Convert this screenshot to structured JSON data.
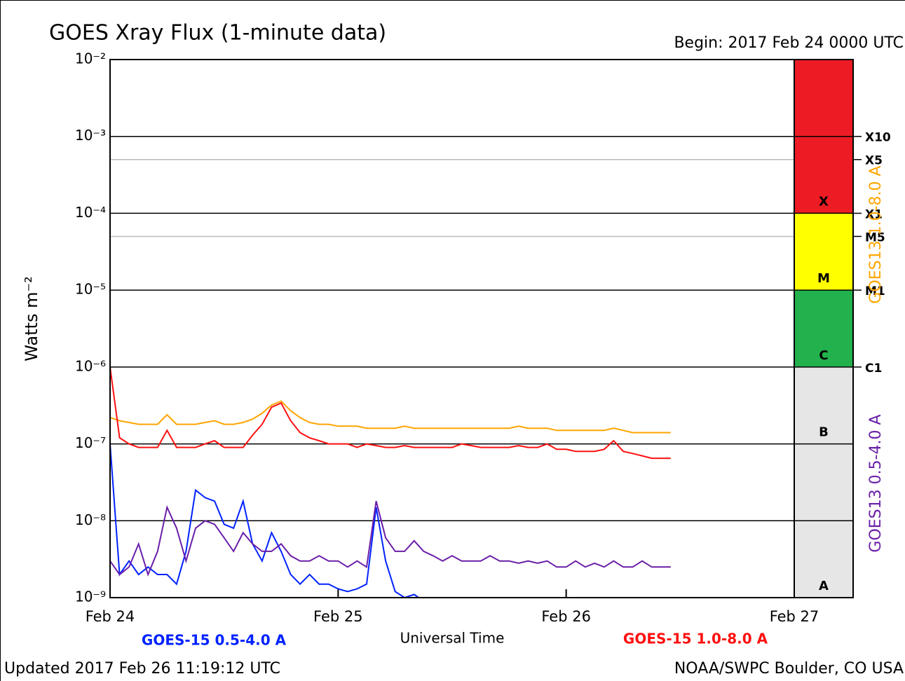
{
  "chart_data": {
    "type": "line",
    "title": "GOES Xray Flux (1-minute data)",
    "subtitle": "Begin:  2017 Feb 24 0000 UTC",
    "ylabel": "Watts m⁻²",
    "xlabel": "Universal Time",
    "footer_left": "Updated 2017 Feb 26 11:19:12 UTC",
    "footer_right": "NOAA/SWPC Boulder, CO USA",
    "log_scale": true,
    "grid": true,
    "ylim": [
      1e-09,
      0.01
    ],
    "yticks": [
      {
        "value": 1e-09,
        "label": "10⁻⁹"
      },
      {
        "value": 1e-08,
        "label": "10⁻⁸"
      },
      {
        "value": 1e-07,
        "label": "10⁻⁷"
      },
      {
        "value": 1e-06,
        "label": "10⁻⁶"
      },
      {
        "value": 1e-05,
        "label": "10⁻⁵"
      },
      {
        "value": 0.0001,
        "label": "10⁻⁴"
      },
      {
        "value": 0.001,
        "label": "10⁻³"
      },
      {
        "value": 0.01,
        "label": "10⁻²"
      }
    ],
    "xlim": [
      0,
      72
    ],
    "xticks": [
      {
        "value": 0,
        "label": "Feb 24"
      },
      {
        "value": 24,
        "label": "Feb 25"
      },
      {
        "value": 48,
        "label": "Feb 26"
      },
      {
        "value": 72,
        "label": "Feb 27"
      }
    ],
    "flare_classes": [
      {
        "label": "X",
        "from": 0.0001,
        "to": 0.01,
        "color": "#ed1c24"
      },
      {
        "label": "M",
        "from": 1e-05,
        "to": 0.0001,
        "color": "#ffff00"
      },
      {
        "label": "C",
        "from": 1e-06,
        "to": 1e-05,
        "color": "#22b14c"
      },
      {
        "label": "B",
        "from": 1e-07,
        "to": 1e-06,
        "color": "#e6e6e6"
      },
      {
        "label": "A",
        "from": 1e-09,
        "to": 1e-07,
        "color": "#e6e6e6"
      }
    ],
    "flare_levels": [
      {
        "value": 0.001,
        "label": "X10"
      },
      {
        "value": 0.0005,
        "label": "X5"
      },
      {
        "value": 0.0001,
        "label": "X1"
      },
      {
        "value": 5e-05,
        "label": "M5"
      },
      {
        "value": 1e-05,
        "label": "M1"
      },
      {
        "value": 1e-06,
        "label": "C1"
      }
    ],
    "x": [
      0,
      1,
      2,
      3,
      4,
      5,
      6,
      7,
      8,
      9,
      10,
      11,
      12,
      13,
      14,
      15,
      16,
      17,
      18,
      19,
      20,
      21,
      22,
      23,
      24,
      25,
      26,
      27,
      28,
      29,
      30,
      31,
      32,
      33,
      34,
      35,
      36,
      37,
      38,
      39,
      40,
      41,
      42,
      43,
      44,
      45,
      46,
      47,
      48,
      49,
      50,
      51,
      52,
      53,
      54,
      55,
      56,
      57,
      58,
      59
    ],
    "series": [
      {
        "name": "GOES-15 0.5-4.0 A",
        "color": "#0022ff",
        "values": [
          1e-07,
          2e-09,
          3e-09,
          2e-09,
          2.5e-09,
          2e-09,
          2e-09,
          1.5e-09,
          4e-09,
          2.5e-08,
          2e-08,
          1.8e-08,
          9e-09,
          8e-09,
          1.8e-08,
          5e-09,
          3e-09,
          7e-09,
          4e-09,
          2e-09,
          1.5e-09,
          2e-09,
          1.5e-09,
          1.5e-09,
          1.3e-09,
          1.2e-09,
          1.3e-09,
          1.5e-09,
          1.5e-08,
          3e-09,
          1.2e-09,
          1e-09,
          1.1e-09,
          9e-10,
          9e-10,
          1e-09,
          9e-10,
          9e-10,
          9e-10,
          9e-10,
          9e-10,
          9e-10,
          9e-10,
          9e-10,
          9e-10,
          9e-10,
          9e-10,
          9e-10,
          9e-10,
          9e-10,
          9e-10,
          9e-10,
          9e-10,
          9e-10,
          9e-10,
          9e-10,
          9e-10,
          9e-10,
          9e-10,
          9e-10
        ]
      },
      {
        "name": "GOES13 0.5-4.0 A",
        "color": "#6a1fa8",
        "values": [
          3e-09,
          2e-09,
          2.5e-09,
          5e-09,
          2e-09,
          4e-09,
          1.5e-08,
          8e-09,
          3e-09,
          8e-09,
          1e-08,
          9e-09,
          6e-09,
          4e-09,
          7e-09,
          5e-09,
          4e-09,
          4e-09,
          5e-09,
          3.5e-09,
          3e-09,
          3e-09,
          3.5e-09,
          3e-09,
          3e-09,
          2.5e-09,
          3e-09,
          2.5e-09,
          1.8e-08,
          6e-09,
          4e-09,
          4e-09,
          5.5e-09,
          4e-09,
          3.5e-09,
          3e-09,
          3.5e-09,
          3e-09,
          3e-09,
          3e-09,
          3.5e-09,
          3e-09,
          3e-09,
          2.8e-09,
          3e-09,
          2.8e-09,
          3e-09,
          2.5e-09,
          2.5e-09,
          3e-09,
          2.5e-09,
          2.8e-09,
          2.5e-09,
          3e-09,
          2.5e-09,
          2.5e-09,
          3e-09,
          2.5e-09,
          2.5e-09,
          2.5e-09
        ]
      },
      {
        "name": "GOES13 1.0-8.0 A",
        "color": "#ffa500",
        "values": [
          2.2e-07,
          2e-07,
          1.9e-07,
          1.8e-07,
          1.8e-07,
          1.8e-07,
          2.4e-07,
          1.8e-07,
          1.8e-07,
          1.8e-07,
          1.9e-07,
          2e-07,
          1.8e-07,
          1.8e-07,
          1.9e-07,
          2.1e-07,
          2.5e-07,
          3.2e-07,
          3.6e-07,
          2.7e-07,
          2.2e-07,
          1.9e-07,
          1.8e-07,
          1.8e-07,
          1.7e-07,
          1.7e-07,
          1.7e-07,
          1.6e-07,
          1.6e-07,
          1.6e-07,
          1.6e-07,
          1.7e-07,
          1.6e-07,
          1.6e-07,
          1.6e-07,
          1.6e-07,
          1.6e-07,
          1.6e-07,
          1.6e-07,
          1.6e-07,
          1.6e-07,
          1.6e-07,
          1.6e-07,
          1.7e-07,
          1.6e-07,
          1.6e-07,
          1.6e-07,
          1.5e-07,
          1.5e-07,
          1.5e-07,
          1.5e-07,
          1.5e-07,
          1.5e-07,
          1.6e-07,
          1.5e-07,
          1.4e-07,
          1.4e-07,
          1.4e-07,
          1.4e-07,
          1.4e-07
        ]
      },
      {
        "name": "GOES-15 1.0-8.0 A",
        "color": "#ff1010",
        "values": [
          1e-06,
          1.2e-07,
          1e-07,
          9e-08,
          9e-08,
          9e-08,
          1.5e-07,
          9e-08,
          9e-08,
          9e-08,
          1e-07,
          1.1e-07,
          9e-08,
          9e-08,
          9e-08,
          1.3e-07,
          1.8e-07,
          3e-07,
          3.4e-07,
          2e-07,
          1.4e-07,
          1.2e-07,
          1.1e-07,
          1e-07,
          1e-07,
          1e-07,
          9e-08,
          1e-07,
          9.5e-08,
          9e-08,
          9e-08,
          9.5e-08,
          9e-08,
          9e-08,
          9e-08,
          9e-08,
          9e-08,
          1e-07,
          9.5e-08,
          9e-08,
          9e-08,
          9e-08,
          9e-08,
          9.5e-08,
          9e-08,
          9e-08,
          1e-07,
          8.5e-08,
          8.5e-08,
          8e-08,
          8e-08,
          8e-08,
          8.5e-08,
          1.1e-07,
          8e-08,
          7.5e-08,
          7e-08,
          6.5e-08,
          6.5e-08,
          6.5e-08
        ]
      }
    ]
  }
}
